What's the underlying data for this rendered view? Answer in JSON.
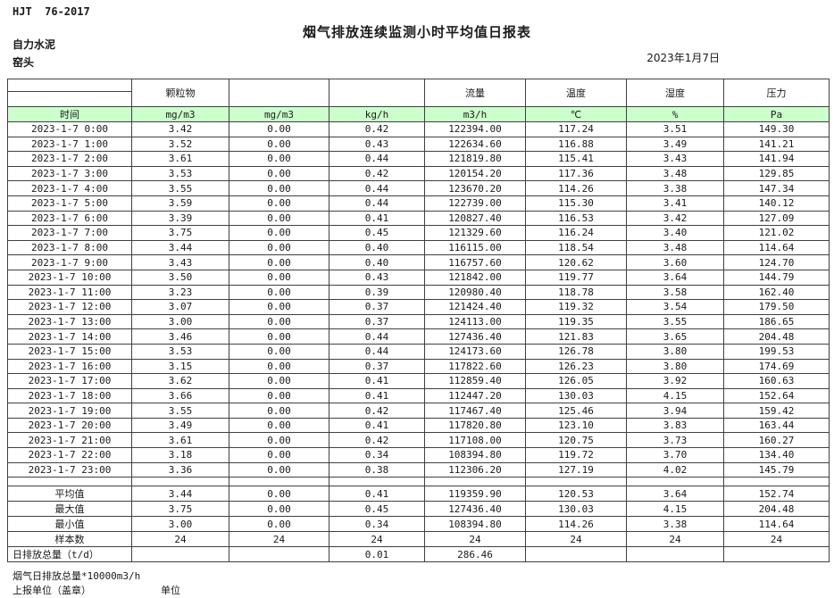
{
  "page": {
    "doc_code": "HJT  76-2017",
    "title": "烟气排放连续监测小时平均值日报表",
    "company": "自力水泥",
    "location": "窑头",
    "date": "2023年1月7日"
  },
  "table": {
    "accent_green": "#ccffcc",
    "group_headers": [
      "",
      "颗粒物",
      "",
      "",
      "流量",
      "温度",
      "湿度",
      "压力"
    ],
    "unit_row": [
      "时间",
      "mg/m3",
      "mg/m3",
      "kg/h",
      "m3/h",
      "℃",
      "%",
      "Pa"
    ],
    "rows": [
      [
        "2023-1-7 0:00",
        "3.42",
        "0.00",
        "0.42",
        "122394.00",
        "117.24",
        "3.51",
        "149.30"
      ],
      [
        "2023-1-7 1:00",
        "3.52",
        "0.00",
        "0.43",
        "122634.60",
        "116.88",
        "3.49",
        "141.21"
      ],
      [
        "2023-1-7 2:00",
        "3.61",
        "0.00",
        "0.44",
        "121819.80",
        "115.41",
        "3.43",
        "141.94"
      ],
      [
        "2023-1-7 3:00",
        "3.53",
        "0.00",
        "0.42",
        "120154.20",
        "117.36",
        "3.48",
        "129.85"
      ],
      [
        "2023-1-7 4:00",
        "3.55",
        "0.00",
        "0.44",
        "123670.20",
        "114.26",
        "3.38",
        "147.34"
      ],
      [
        "2023-1-7 5:00",
        "3.59",
        "0.00",
        "0.44",
        "122739.00",
        "115.30",
        "3.41",
        "140.12"
      ],
      [
        "2023-1-7 6:00",
        "3.39",
        "0.00",
        "0.41",
        "120827.40",
        "116.53",
        "3.42",
        "127.09"
      ],
      [
        "2023-1-7 7:00",
        "3.75",
        "0.00",
        "0.45",
        "121329.60",
        "116.24",
        "3.40",
        "121.02"
      ],
      [
        "2023-1-7 8:00",
        "3.44",
        "0.00",
        "0.40",
        "116115.00",
        "118.54",
        "3.48",
        "114.64"
      ],
      [
        "2023-1-7 9:00",
        "3.43",
        "0.00",
        "0.40",
        "116757.60",
        "120.62",
        "3.60",
        "124.70"
      ],
      [
        "2023-1-7 10:00",
        "3.50",
        "0.00",
        "0.43",
        "121842.00",
        "119.77",
        "3.64",
        "144.79"
      ],
      [
        "2023-1-7 11:00",
        "3.23",
        "0.00",
        "0.39",
        "120980.40",
        "118.78",
        "3.58",
        "162.40"
      ],
      [
        "2023-1-7 12:00",
        "3.07",
        "0.00",
        "0.37",
        "121424.40",
        "119.32",
        "3.54",
        "179.50"
      ],
      [
        "2023-1-7 13:00",
        "3.00",
        "0.00",
        "0.37",
        "124113.00",
        "119.35",
        "3.55",
        "186.65"
      ],
      [
        "2023-1-7 14:00",
        "3.46",
        "0.00",
        "0.44",
        "127436.40",
        "121.83",
        "3.65",
        "204.48"
      ],
      [
        "2023-1-7 15:00",
        "3.53",
        "0.00",
        "0.44",
        "124173.60",
        "126.78",
        "3.80",
        "199.53"
      ],
      [
        "2023-1-7 16:00",
        "3.15",
        "0.00",
        "0.37",
        "117822.60",
        "126.23",
        "3.80",
        "174.69"
      ],
      [
        "2023-1-7 17:00",
        "3.62",
        "0.00",
        "0.41",
        "112859.40",
        "126.05",
        "3.92",
        "160.63"
      ],
      [
        "2023-1-7 18:00",
        "3.66",
        "0.00",
        "0.41",
        "112447.20",
        "130.03",
        "4.15",
        "152.64"
      ],
      [
        "2023-1-7 19:00",
        "3.55",
        "0.00",
        "0.42",
        "117467.40",
        "125.46",
        "3.94",
        "159.42"
      ],
      [
        "2023-1-7 20:00",
        "3.49",
        "0.00",
        "0.41",
        "117820.80",
        "123.10",
        "3.83",
        "163.44"
      ],
      [
        "2023-1-7 21:00",
        "3.61",
        "0.00",
        "0.42",
        "117108.00",
        "120.75",
        "3.73",
        "160.27"
      ],
      [
        "2023-1-7 22:00",
        "3.18",
        "0.00",
        "0.34",
        "108394.80",
        "119.72",
        "3.70",
        "134.40"
      ],
      [
        "2023-1-7 23:00",
        "3.36",
        "0.00",
        "0.38",
        "112306.20",
        "127.19",
        "4.02",
        "145.79"
      ]
    ],
    "summary_rows": [
      [
        "平均值",
        "3.44",
        "0.00",
        "0.41",
        "119359.90",
        "120.53",
        "3.64",
        "152.74"
      ],
      [
        "最大值",
        "3.75",
        "0.00",
        "0.45",
        "127436.40",
        "130.03",
        "4.15",
        "204.48"
      ],
      [
        "最小值",
        "3.00",
        "0.00",
        "0.34",
        "108394.80",
        "114.26",
        "3.38",
        "114.64"
      ],
      [
        "样本数",
        "24",
        "24",
        "24",
        "24",
        "24",
        "24",
        "24"
      ],
      [
        "日排放总量（t/d）",
        "",
        "",
        "0.01",
        "286.46",
        "",
        "",
        ""
      ]
    ]
  },
  "footer": {
    "note": "烟气日排放总量*10000m3/h",
    "report_unit_label": "上报单位（盖章）",
    "unit_label": "单位"
  }
}
